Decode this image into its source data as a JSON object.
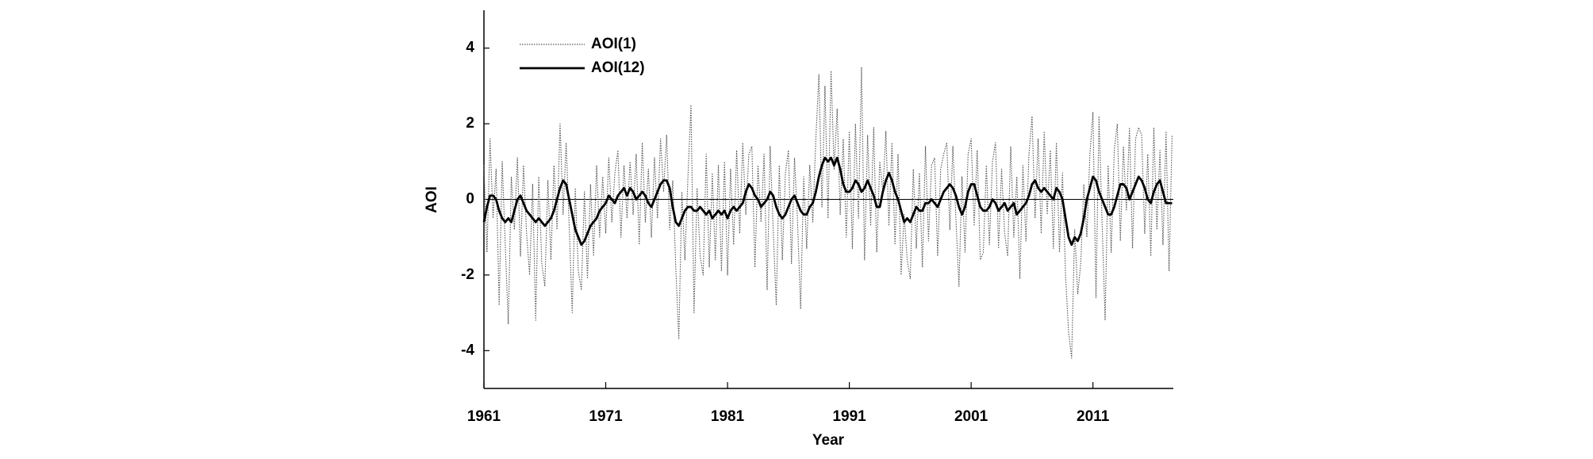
{
  "chart_data": {
    "type": "line",
    "xlabel": "Year",
    "ylabel": "AOI",
    "xlim": [
      1961,
      2017.6
    ],
    "xticks": [
      1961,
      1971,
      1981,
      1991,
      2001,
      2011
    ],
    "ylim": [
      -5,
      5
    ],
    "yticks": [
      -4,
      -2,
      0,
      2,
      4
    ],
    "zero_line": true,
    "legend": "upper left",
    "x": [
      1961,
      1961.25,
      1961.5,
      1961.75,
      1962,
      1962.25,
      1962.5,
      1962.75,
      1963,
      1963.25,
      1963.5,
      1963.75,
      1964,
      1964.25,
      1964.5,
      1964.75,
      1965,
      1965.25,
      1965.5,
      1965.75,
      1966,
      1966.25,
      1966.5,
      1966.75,
      1967,
      1967.25,
      1967.5,
      1967.75,
      1968,
      1968.25,
      1968.5,
      1968.75,
      1969,
      1969.25,
      1969.5,
      1969.75,
      1970,
      1970.25,
      1970.5,
      1970.75,
      1971,
      1971.25,
      1971.5,
      1971.75,
      1972,
      1972.25,
      1972.5,
      1972.75,
      1973,
      1973.25,
      1973.5,
      1973.75,
      1974,
      1974.25,
      1974.5,
      1974.75,
      1975,
      1975.25,
      1975.5,
      1975.75,
      1976,
      1976.25,
      1976.5,
      1976.75,
      1977,
      1977.25,
      1977.5,
      1977.75,
      1978,
      1978.25,
      1978.5,
      1978.75,
      1979,
      1979.25,
      1979.5,
      1979.75,
      1980,
      1980.25,
      1980.5,
      1980.75,
      1981,
      1981.25,
      1981.5,
      1981.75,
      1982,
      1982.25,
      1982.5,
      1982.75,
      1983,
      1983.25,
      1983.5,
      1983.75,
      1984,
      1984.25,
      1984.5,
      1984.75,
      1985,
      1985.25,
      1985.5,
      1985.75,
      1986,
      1986.25,
      1986.5,
      1986.75,
      1987,
      1987.25,
      1987.5,
      1987.75,
      1988,
      1988.25,
      1988.5,
      1988.75,
      1989,
      1989.25,
      1989.5,
      1989.75,
      1990,
      1990.25,
      1990.5,
      1990.75,
      1991,
      1991.25,
      1991.5,
      1991.75,
      1992,
      1992.25,
      1992.5,
      1992.75,
      1993,
      1993.25,
      1993.5,
      1993.75,
      1994,
      1994.25,
      1994.5,
      1994.75,
      1995,
      1995.25,
      1995.5,
      1995.75,
      1996,
      1996.25,
      1996.5,
      1996.75,
      1997,
      1997.25,
      1997.5,
      1997.75,
      1998,
      1998.25,
      1998.5,
      1998.75,
      1999,
      1999.25,
      1999.5,
      1999.75,
      2000,
      2000.25,
      2000.5,
      2000.75,
      2001,
      2001.25,
      2001.5,
      2001.75,
      2002,
      2002.25,
      2002.5,
      2002.75,
      2003,
      2003.25,
      2003.5,
      2003.75,
      2004,
      2004.25,
      2004.5,
      2004.75,
      2005,
      2005.25,
      2005.5,
      2005.75,
      2006,
      2006.25,
      2006.5,
      2006.75,
      2007,
      2007.25,
      2007.5,
      2007.75,
      2008,
      2008.25,
      2008.5,
      2008.75,
      2009,
      2009.25,
      2009.5,
      2009.75,
      2010,
      2010.25,
      2010.5,
      2010.75,
      2011,
      2011.25,
      2011.5,
      2011.75,
      2012,
      2012.25,
      2012.5,
      2012.75,
      2013,
      2013.25,
      2013.5,
      2013.75,
      2014,
      2014.25,
      2014.5,
      2014.75,
      2015,
      2015.25,
      2015.5,
      2015.75,
      2016,
      2016.25,
      2016.5,
      2016.75,
      2017,
      2017.25,
      2017.5
    ],
    "series": [
      {
        "name": "AOI(1)",
        "color": "#555555",
        "style": "dotted",
        "values": [
          0.9,
          -1.4,
          1.6,
          -0.5,
          0.8,
          -2.8,
          1.0,
          -1.2,
          -3.3,
          0.6,
          -0.8,
          1.1,
          -1.5,
          0.9,
          -0.9,
          -2.0,
          0.4,
          -3.2,
          0.6,
          -1.7,
          -2.3,
          0.5,
          -1.6,
          0.9,
          -0.8,
          2.0,
          -0.4,
          1.5,
          -0.7,
          -3.0,
          0.3,
          -1.9,
          -2.4,
          0.2,
          -2.1,
          0.4,
          -1.5,
          0.9,
          -1.0,
          0.6,
          -0.9,
          1.1,
          -0.6,
          0.7,
          1.3,
          -1.0,
          0.9,
          -0.5,
          1.0,
          -0.4,
          1.2,
          -1.2,
          1.5,
          -0.6,
          0.8,
          -1.0,
          1.1,
          -0.5,
          1.6,
          0.2,
          1.7,
          -0.8,
          0.5,
          -1.8,
          -3.7,
          0.2,
          -1.6,
          0.6,
          2.5,
          -3.0,
          0.3,
          -1.5,
          -2.0,
          1.2,
          -1.8,
          0.7,
          -1.6,
          0.9,
          -1.9,
          1.0,
          -2.0,
          0.8,
          -1.2,
          1.3,
          -0.9,
          1.5,
          -0.4,
          1.2,
          1.4,
          -1.8,
          0.9,
          -0.6,
          1.2,
          -2.4,
          1.4,
          -0.8,
          -2.8,
          0.9,
          -1.6,
          0.7,
          1.3,
          -1.7,
          1.1,
          -0.6,
          -2.9,
          0.6,
          -1.3,
          0.9,
          -0.6,
          1.6,
          3.3,
          -0.2,
          3.0,
          -0.5,
          3.4,
          0.8,
          2.4,
          -0.4,
          1.6,
          -1.0,
          1.8,
          -1.3,
          2.0,
          -0.5,
          3.5,
          -1.6,
          1.7,
          -0.7,
          1.9,
          -1.4,
          1.0,
          0.2,
          1.8,
          -0.7,
          1.5,
          -1.2,
          1.2,
          -2.0,
          -0.4,
          -1.6,
          -2.1,
          0.8,
          -1.3,
          0.7,
          -1.8,
          1.4,
          -1.1,
          0.9,
          1.1,
          -1.5,
          0.8,
          1.2,
          1.5,
          -0.8,
          1.4,
          -0.5,
          -2.3,
          0.6,
          -1.4,
          1.2,
          1.6,
          -0.7,
          1.3,
          -1.6,
          -1.4,
          0.9,
          -1.2,
          1.0,
          1.5,
          -1.3,
          0.8,
          -0.9,
          -1.5,
          1.4,
          -1.0,
          0.6,
          -2.1,
          0.9,
          -1.1,
          1.2,
          2.2,
          -0.5,
          1.6,
          -0.9,
          1.8,
          -0.4,
          1.3,
          -1.3,
          1.5,
          -1.4,
          0.7,
          -2.0,
          -3.5,
          -4.2,
          -0.8,
          -2.5,
          -1.7,
          0.4,
          -1.0,
          1.2,
          2.3,
          -2.6,
          2.2,
          -0.6,
          -3.2,
          0.9,
          -1.4,
          1.3,
          2.0,
          -1.1,
          1.4,
          -0.3,
          1.9,
          -1.3,
          1.6,
          1.9,
          1.7,
          -0.9,
          1.2,
          -1.5,
          1.9,
          -0.8,
          1.3,
          -1.2,
          1.8,
          -1.9,
          1.7
        ]
      },
      {
        "name": "AOI(12)",
        "color": "#000000",
        "style": "solid",
        "values": [
          -0.6,
          -0.2,
          0.1,
          0.1,
          0.0,
          -0.3,
          -0.5,
          -0.6,
          -0.5,
          -0.6,
          -0.3,
          0.0,
          0.1,
          -0.1,
          -0.3,
          -0.4,
          -0.5,
          -0.6,
          -0.5,
          -0.6,
          -0.7,
          -0.6,
          -0.5,
          -0.3,
          0.0,
          0.3,
          0.5,
          0.4,
          0.0,
          -0.4,
          -0.8,
          -1.0,
          -1.2,
          -1.1,
          -0.9,
          -0.7,
          -0.6,
          -0.5,
          -0.3,
          -0.2,
          -0.1,
          0.1,
          0.0,
          -0.1,
          0.1,
          0.2,
          0.3,
          0.1,
          0.3,
          0.2,
          0.0,
          0.1,
          0.2,
          0.1,
          -0.1,
          -0.2,
          0.0,
          0.2,
          0.4,
          0.5,
          0.5,
          0.3,
          -0.2,
          -0.6,
          -0.7,
          -0.5,
          -0.3,
          -0.2,
          -0.2,
          -0.3,
          -0.3,
          -0.2,
          -0.3,
          -0.4,
          -0.3,
          -0.5,
          -0.4,
          -0.3,
          -0.4,
          -0.3,
          -0.5,
          -0.3,
          -0.2,
          -0.3,
          -0.2,
          -0.1,
          0.2,
          0.4,
          0.3,
          0.1,
          0.0,
          -0.2,
          -0.1,
          0.0,
          0.2,
          0.1,
          -0.2,
          -0.4,
          -0.5,
          -0.4,
          -0.2,
          0.0,
          0.1,
          -0.1,
          -0.3,
          -0.4,
          -0.4,
          -0.2,
          -0.1,
          0.2,
          0.6,
          0.9,
          1.1,
          1.0,
          1.1,
          0.9,
          1.1,
          0.8,
          0.4,
          0.2,
          0.2,
          0.3,
          0.5,
          0.4,
          0.2,
          0.3,
          0.5,
          0.3,
          0.1,
          -0.2,
          -0.2,
          0.2,
          0.5,
          0.7,
          0.5,
          0.2,
          0.0,
          -0.3,
          -0.6,
          -0.5,
          -0.6,
          -0.4,
          -0.2,
          -0.3,
          -0.3,
          -0.1,
          -0.1,
          0.0,
          -0.1,
          -0.2,
          0.0,
          0.2,
          0.3,
          0.4,
          0.3,
          0.1,
          -0.2,
          -0.4,
          -0.2,
          0.2,
          0.4,
          0.4,
          0.1,
          -0.2,
          -0.3,
          -0.3,
          -0.2,
          0.0,
          -0.1,
          -0.3,
          -0.2,
          -0.1,
          -0.3,
          -0.2,
          -0.1,
          -0.4,
          -0.3,
          -0.2,
          -0.1,
          0.1,
          0.4,
          0.5,
          0.3,
          0.2,
          0.3,
          0.2,
          0.1,
          0.0,
          0.3,
          0.2,
          0.0,
          -0.5,
          -1.0,
          -1.2,
          -1.0,
          -1.1,
          -0.9,
          -0.5,
          0.0,
          0.3,
          0.6,
          0.5,
          0.2,
          0.0,
          -0.2,
          -0.4,
          -0.4,
          -0.2,
          0.1,
          0.4,
          0.4,
          0.3,
          0.0,
          0.2,
          0.4,
          0.6,
          0.5,
          0.3,
          0.0,
          -0.1,
          0.2,
          0.4,
          0.5,
          0.2,
          -0.1,
          -0.1,
          -0.1
        ]
      }
    ]
  }
}
